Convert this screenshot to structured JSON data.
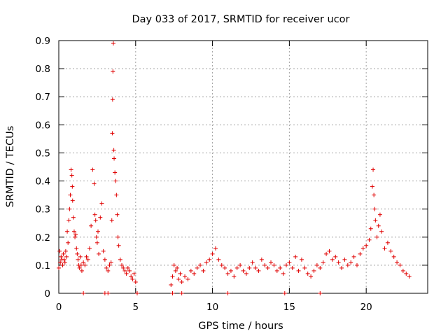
{
  "chart_data": {
    "type": "scatter",
    "title": "Day 033 of 2017, SRMTID for receiver ucor",
    "xlabel": "GPS time / hours",
    "ylabel": "SRMTID / TECUs",
    "xlim": [
      0,
      24
    ],
    "ylim": [
      0,
      0.9
    ],
    "x_ticks": [
      0,
      5,
      10,
      15,
      20
    ],
    "x_tick_labels": [
      "0",
      "5",
      "10",
      "15",
      "20"
    ],
    "y_ticks": [
      0,
      0.1,
      0.2,
      0.3,
      0.4,
      0.5,
      0.6,
      0.7,
      0.8,
      0.9
    ],
    "y_tick_labels": [
      "0",
      "0.1",
      "0.2",
      "0.3",
      "0.4",
      "0.5",
      "0.6",
      "0.7",
      "0.8",
      "0.9"
    ],
    "grid": true,
    "marker": "plus",
    "series": [
      {
        "name": "SRMTID",
        "color": "#e00000",
        "x": [
          0.0,
          0.05,
          0.1,
          0.15,
          0.2,
          0.25,
          0.3,
          0.35,
          0.4,
          0.45,
          0.5,
          0.55,
          0.6,
          0.65,
          0.7,
          0.75,
          0.8,
          0.85,
          0.88,
          0.9,
          0.95,
          1.0,
          1.05,
          1.1,
          1.15,
          1.2,
          1.25,
          1.3,
          1.35,
          1.4,
          1.45,
          1.5,
          1.6,
          1.7,
          1.8,
          1.9,
          2.0,
          2.1,
          2.2,
          2.3,
          2.35,
          2.4,
          2.45,
          2.5,
          2.55,
          2.6,
          2.7,
          2.8,
          2.9,
          3.0,
          3.1,
          3.2,
          3.3,
          3.4,
          3.45,
          3.48,
          3.5,
          3.52,
          3.55,
          3.58,
          3.6,
          3.65,
          3.7,
          3.75,
          3.8,
          3.85,
          3.9,
          4.0,
          4.1,
          4.2,
          4.3,
          4.4,
          4.5,
          4.6,
          4.7,
          4.8,
          4.9,
          5.0,
          7.3,
          7.4,
          7.5,
          7.6,
          7.7,
          7.8,
          7.9,
          8.0,
          8.2,
          8.4,
          8.6,
          8.8,
          9.0,
          9.2,
          9.4,
          9.6,
          9.8,
          10.0,
          10.2,
          10.4,
          10.6,
          10.8,
          11.0,
          11.2,
          11.4,
          11.6,
          11.8,
          12.0,
          12.2,
          12.4,
          12.6,
          12.8,
          13.0,
          13.2,
          13.4,
          13.6,
          13.8,
          14.0,
          14.2,
          14.4,
          14.6,
          14.8,
          15.0,
          15.2,
          15.4,
          15.6,
          15.8,
          16.0,
          16.2,
          16.4,
          16.6,
          16.8,
          17.0,
          17.2,
          17.4,
          17.6,
          17.8,
          18.0,
          18.2,
          18.4,
          18.6,
          18.8,
          19.0,
          19.2,
          19.4,
          19.6,
          19.8,
          20.0,
          20.2,
          20.3,
          20.4,
          20.45,
          20.5,
          20.55,
          20.6,
          20.7,
          20.8,
          20.9,
          21.0,
          21.2,
          21.4,
          21.6,
          21.8,
          22.0,
          22.2,
          22.4,
          22.6,
          22.8,
          1.6,
          3.0,
          3.2,
          5.1,
          7.4,
          8.0,
          11.0,
          14.7,
          17.0
        ],
        "y": [
          0.09,
          0.15,
          0.11,
          0.13,
          0.12,
          0.1,
          0.14,
          0.12,
          0.11,
          0.15,
          0.13,
          0.22,
          0.18,
          0.26,
          0.3,
          0.35,
          0.44,
          0.42,
          0.38,
          0.33,
          0.27,
          0.22,
          0.2,
          0.21,
          0.16,
          0.14,
          0.12,
          0.1,
          0.09,
          0.13,
          0.1,
          0.08,
          0.11,
          0.1,
          0.13,
          0.12,
          0.16,
          0.24,
          0.44,
          0.39,
          0.28,
          0.26,
          0.2,
          0.18,
          0.22,
          0.14,
          0.27,
          0.32,
          0.15,
          0.12,
          0.09,
          0.08,
          0.1,
          0.11,
          0.26,
          0.57,
          0.69,
          0.79,
          0.89,
          0.51,
          0.48,
          0.43,
          0.4,
          0.35,
          0.28,
          0.2,
          0.17,
          0.12,
          0.1,
          0.09,
          0.08,
          0.07,
          0.09,
          0.08,
          0.06,
          0.05,
          0.07,
          0.04,
          0.03,
          0.06,
          0.1,
          0.08,
          0.09,
          0.05,
          0.07,
          0.04,
          0.06,
          0.05,
          0.08,
          0.07,
          0.09,
          0.1,
          0.08,
          0.11,
          0.12,
          0.14,
          0.16,
          0.12,
          0.1,
          0.09,
          0.07,
          0.08,
          0.06,
          0.09,
          0.1,
          0.08,
          0.07,
          0.09,
          0.11,
          0.09,
          0.08,
          0.12,
          0.1,
          0.09,
          0.11,
          0.1,
          0.08,
          0.09,
          0.07,
          0.1,
          0.11,
          0.09,
          0.13,
          0.08,
          0.12,
          0.09,
          0.07,
          0.06,
          0.08,
          0.1,
          0.09,
          0.11,
          0.14,
          0.15,
          0.12,
          0.13,
          0.11,
          0.09,
          0.12,
          0.1,
          0.11,
          0.13,
          0.1,
          0.14,
          0.16,
          0.17,
          0.19,
          0.23,
          0.38,
          0.44,
          0.35,
          0.3,
          0.26,
          0.2,
          0.24,
          0.28,
          0.22,
          0.16,
          0.18,
          0.15,
          0.13,
          0.11,
          0.1,
          0.08,
          0.07,
          0.06,
          0.0,
          0.0,
          0.0,
          0.0,
          0.0,
          0.0,
          0.0,
          0.0,
          0.0
        ]
      }
    ]
  }
}
